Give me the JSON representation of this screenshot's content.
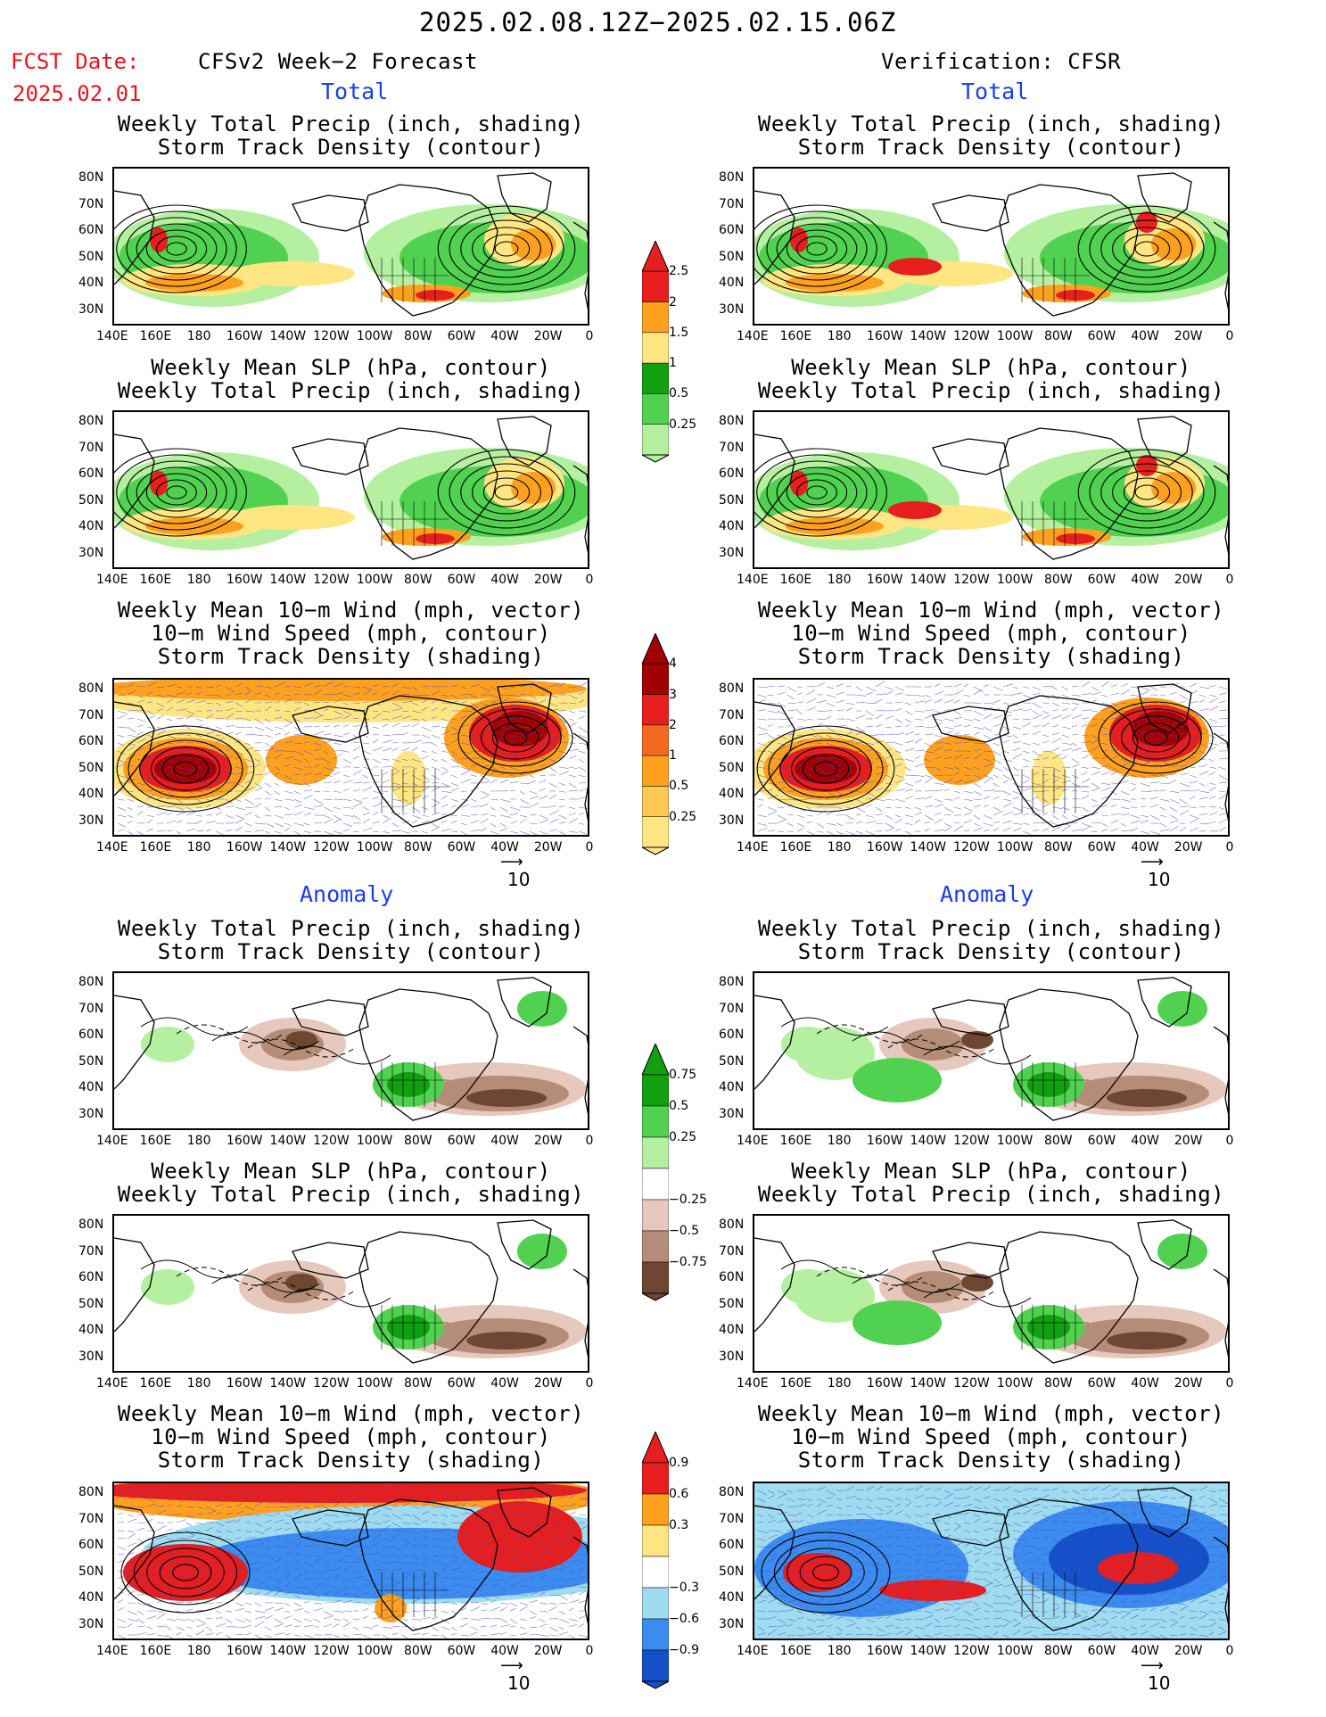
{
  "header": {
    "date_range": "2025.02.08.12Z−2025.02.15.06Z",
    "fcst_label": "FCST Date:",
    "fcst_date": "2025.02.01",
    "left_title": "CFSv2 Week−2 Forecast",
    "right_title": "Verification: CFSR"
  },
  "sections": {
    "total": "Total",
    "anomaly": "Anomaly"
  },
  "titles": {
    "precip_storm": [
      "Weekly Total Precip (inch, shading)",
      "Storm Track Density (contour)"
    ],
    "slp_precip": [
      "Weekly Mean SLP (hPa, contour)",
      "Weekly Total Precip (inch, shading)"
    ],
    "wind_storm": [
      "Weekly Mean 10−m Wind (mph, vector)",
      "10−m Wind Speed (mph, contour)",
      "Storm Track Density (shading)"
    ]
  },
  "axes": {
    "lat_labels": [
      "80N",
      "70N",
      "60N",
      "50N",
      "40N",
      "30N"
    ],
    "lon_labels": [
      "140E",
      "160E",
      "180",
      "160W",
      "140W",
      "120W",
      "100W",
      "80W",
      "60W",
      "40W",
      "20W",
      "0"
    ]
  },
  "vector_scale": "10",
  "colorbars": {
    "precip_total": [
      "2.5",
      "2",
      "1.5",
      "1",
      "0.5",
      "0.25"
    ],
    "storm_total": [
      "4",
      "3",
      "2",
      "1",
      "0.5",
      "0.25"
    ],
    "precip_anom": [
      "0.75",
      "0.5",
      "0.25",
      "−0.25",
      "−0.5",
      "−0.75"
    ],
    "storm_anom": [
      "0.9",
      "0.6",
      "0.3",
      "−0.3",
      "−0.6",
      "−0.9"
    ]
  },
  "colors": {
    "green_light": "#b4f0a0",
    "green_mid": "#50d250",
    "green_dark": "#10a010",
    "yellow": "#ffe682",
    "orange": "#ffa01e",
    "red": "#e61e1e",
    "darkred": "#a00000",
    "brown_light": "#e6c8bc",
    "brown_mid": "#b48c78",
    "brown_dark": "#6e4632",
    "blue_light": "#a0dcf0",
    "blue_mid": "#3c8cf0",
    "blue_dark": "#1450c8"
  }
}
